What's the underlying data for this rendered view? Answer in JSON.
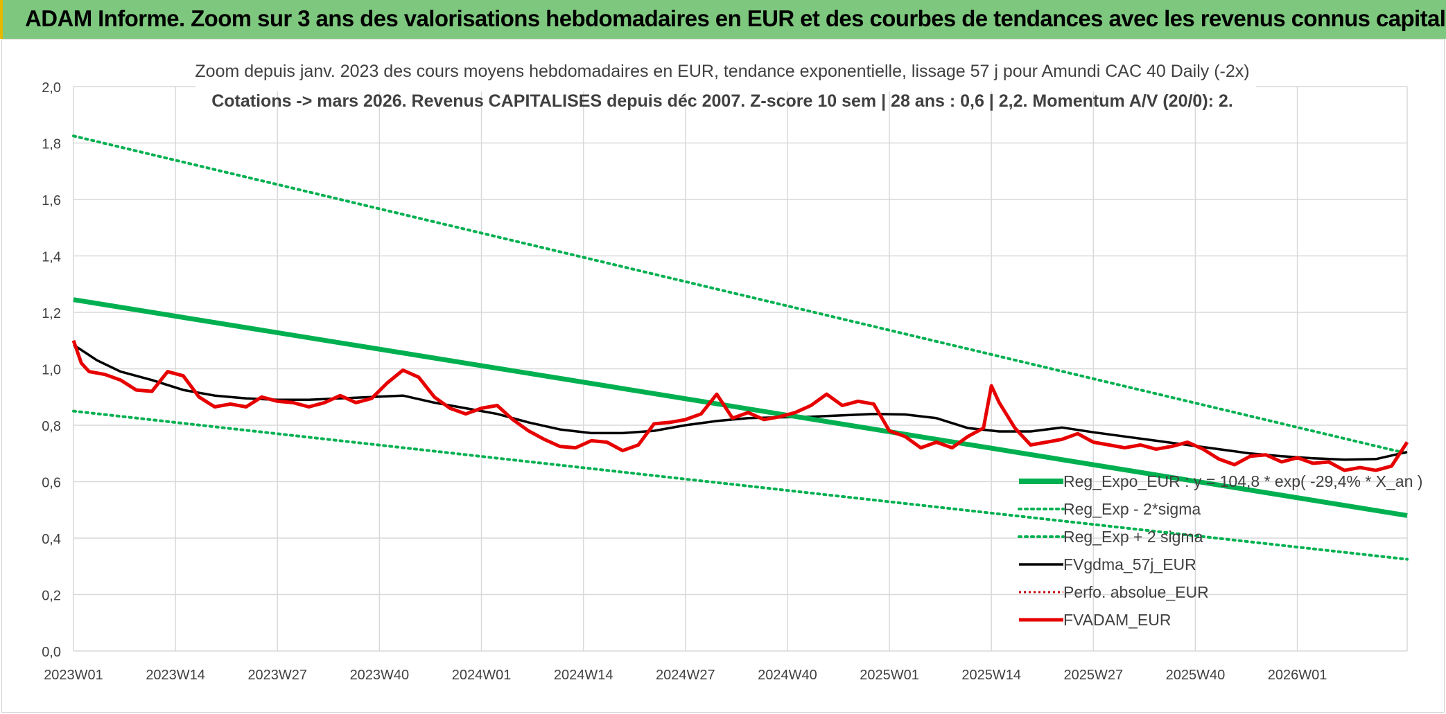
{
  "banner": {
    "title": "ADAM Informe. Zoom sur 3 ans des valorisations hebdomadaires en EUR et des courbes de tendances avec les revenus connus capitalisés"
  },
  "colors": {
    "banner_bg": "#7dc87e",
    "trend": "#00b050",
    "fv_adam": "#e60000",
    "fvgdma": "#000000",
    "perfo": "#c00000",
    "grid": "#d9d9d9",
    "axis_text": "#404040",
    "title_text": "#404040"
  },
  "chart_data": {
    "type": "line",
    "title_line1": "Zoom depuis janv. 2023 des cours moyens hebdomadaires en EUR, tendance exponentielle, lissage 57 j pour Amundi CAC 40 Daily (-2x)",
    "title_line2": "Cotations -> mars 2026. Revenus CAPITALISES depuis déc 2007. Z-score 10 sem | 28 ans : 0,6 | 2,2. Momentum A/V (20/0): 2.",
    "xlabel": "",
    "ylabel": "",
    "ylim": [
      0,
      2.0
    ],
    "yticks": [
      "0,0",
      "0,2",
      "0,4",
      "0,6",
      "0,8",
      "1,0",
      "1,2",
      "1,4",
      "1,6",
      "1,8",
      "2,0"
    ],
    "x_tick_labels": [
      "2023W01",
      "2023W14",
      "2023W27",
      "2023W40",
      "2024W01",
      "2024W14",
      "2024W27",
      "2024W40",
      "2025W01",
      "2025W14",
      "2025W27",
      "2025W40",
      "2026W01"
    ],
    "x_tick_index": [
      0,
      13,
      26,
      39,
      52,
      65,
      78,
      91,
      104,
      117,
      130,
      143,
      156
    ],
    "n_weeks": 171,
    "grid": true,
    "legend_position": "bottom-right",
    "legend": [
      "Reg_Expo_EUR : y = 104,8 * exp( -29,4% *  X_an )",
      "Reg_Exp - 2*sigma",
      "Reg_Exp + 2 sigma",
      "FVgdma_57j_EUR",
      "Perfo. absolue_EUR",
      "FVADAM_EUR"
    ],
    "series": [
      {
        "name": "Reg_Expo_EUR : y = 104,8 * exp( -29,4% *  X_an )",
        "style": "trend",
        "x": [
          0,
          170
        ],
        "values": [
          1.245,
          0.48
        ]
      },
      {
        "name": "Reg_Exp - 2*sigma",
        "style": "dotted",
        "x": [
          0,
          170
        ],
        "values": [
          0.85,
          0.325
        ]
      },
      {
        "name": "Reg_Exp + 2 sigma",
        "style": "dotted",
        "x": [
          0,
          170
        ],
        "values": [
          1.825,
          0.7
        ]
      },
      {
        "name": "FVgdma_57j_EUR",
        "style": "black",
        "x": [
          0,
          3,
          6,
          10,
          14,
          18,
          22,
          26,
          30,
          34,
          38,
          42,
          46,
          50,
          54,
          58,
          62,
          66,
          70,
          74,
          78,
          82,
          86,
          90,
          94,
          98,
          102,
          106,
          110,
          114,
          118,
          122,
          126,
          130,
          134,
          138,
          142,
          146,
          150,
          154,
          158,
          162,
          166,
          170
        ],
        "values": [
          1.085,
          1.03,
          0.99,
          0.96,
          0.925,
          0.905,
          0.895,
          0.89,
          0.89,
          0.895,
          0.9,
          0.905,
          0.88,
          0.86,
          0.84,
          0.81,
          0.785,
          0.772,
          0.772,
          0.78,
          0.8,
          0.815,
          0.825,
          0.828,
          0.83,
          0.835,
          0.84,
          0.838,
          0.825,
          0.79,
          0.778,
          0.778,
          0.792,
          0.775,
          0.76,
          0.745,
          0.73,
          0.715,
          0.7,
          0.69,
          0.683,
          0.678,
          0.68,
          0.705
        ]
      },
      {
        "name": "Perfo. absolue_EUR",
        "style": "red-dotted",
        "x": [],
        "values": []
      },
      {
        "name": "FVADAM_EUR",
        "style": "red",
        "x": [
          0,
          1,
          2,
          4,
          6,
          8,
          10,
          12,
          14,
          16,
          18,
          20,
          22,
          24,
          26,
          28,
          30,
          32,
          34,
          36,
          38,
          40,
          42,
          44,
          46,
          48,
          50,
          52,
          54,
          56,
          58,
          60,
          62,
          64,
          66,
          68,
          70,
          72,
          74,
          76,
          78,
          80,
          82,
          84,
          86,
          88,
          90,
          92,
          94,
          96,
          98,
          100,
          102,
          104,
          106,
          108,
          110,
          112,
          114,
          116,
          117,
          118,
          120,
          122,
          124,
          126,
          128,
          130,
          132,
          134,
          136,
          138,
          140,
          142,
          144,
          146,
          148,
          150,
          152,
          154,
          156,
          158,
          160,
          162,
          164,
          166,
          168,
          170
        ],
        "values": [
          1.1,
          1.02,
          0.99,
          0.98,
          0.96,
          0.925,
          0.92,
          0.99,
          0.975,
          0.9,
          0.865,
          0.875,
          0.865,
          0.9,
          0.885,
          0.88,
          0.865,
          0.88,
          0.905,
          0.88,
          0.895,
          0.95,
          0.995,
          0.97,
          0.9,
          0.86,
          0.84,
          0.86,
          0.87,
          0.82,
          0.78,
          0.75,
          0.725,
          0.72,
          0.745,
          0.74,
          0.71,
          0.73,
          0.805,
          0.81,
          0.82,
          0.84,
          0.91,
          0.825,
          0.845,
          0.82,
          0.83,
          0.845,
          0.87,
          0.91,
          0.87,
          0.885,
          0.875,
          0.78,
          0.76,
          0.72,
          0.74,
          0.72,
          0.76,
          0.79,
          0.94,
          0.88,
          0.79,
          0.73,
          0.74,
          0.75,
          0.77,
          0.74,
          0.73,
          0.72,
          0.73,
          0.715,
          0.725,
          0.74,
          0.715,
          0.68,
          0.66,
          0.69,
          0.695,
          0.67,
          0.685,
          0.665,
          0.67,
          0.64,
          0.65,
          0.64,
          0.655,
          0.74
        ]
      }
    ]
  }
}
